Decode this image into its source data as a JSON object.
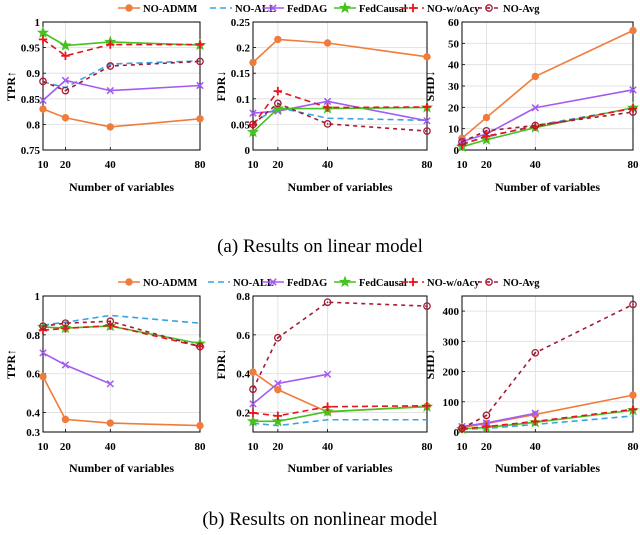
{
  "legends": [
    {
      "items": [
        {
          "name": "NO-ADMM",
          "color": "#f07c3c",
          "dash": "",
          "marker": "circle"
        },
        {
          "name": "NO-ALL",
          "color": "#3aa3e8",
          "dash": "6,4",
          "marker": "none"
        },
        {
          "name": "FedDAG",
          "color": "#a35bf2",
          "dash": "",
          "marker": "x"
        },
        {
          "name": "FedCausal",
          "color": "#45c21f",
          "dash": "",
          "marker": "star"
        },
        {
          "name": "NO-w/oAcy",
          "color": "#e8141e",
          "dash": "6,4",
          "marker": "plus"
        },
        {
          "name": "NO-Avg",
          "color": "#a31c34",
          "dash": "4,4",
          "marker": "circle-open"
        }
      ]
    },
    {
      "items": [
        {
          "name": "NO-ADMM",
          "color": "#f07c3c",
          "dash": "",
          "marker": "circle"
        },
        {
          "name": "NO-ALL",
          "color": "#3aa3e8",
          "dash": "6,4",
          "marker": "none"
        },
        {
          "name": "FedDAG",
          "color": "#a35bf2",
          "dash": "",
          "marker": "x"
        },
        {
          "name": "FedCausal",
          "color": "#45c21f",
          "dash": "",
          "marker": "star"
        },
        {
          "name": "NO-w/oAcy",
          "color": "#e8141e",
          "dash": "6,4",
          "marker": "plus"
        },
        {
          "name": "NO-Avg",
          "color": "#a31c34",
          "dash": "4,4",
          "marker": "circle-open"
        }
      ]
    }
  ],
  "captions": [
    "(a)  Results on linear model",
    "(b)  Results on nonlinear model"
  ],
  "chart_data": [
    {
      "type": "line",
      "row": 0,
      "col": 0,
      "ylabel": "TPR↑",
      "xlabel": "Number of variables",
      "x": [
        10,
        20,
        40,
        80
      ],
      "xticks": [
        10,
        20,
        40,
        80
      ],
      "xlim": [
        10,
        80
      ],
      "ylim": [
        0.75,
        1
      ],
      "yticks": [
        0.75,
        0.8,
        0.85,
        0.9,
        0.95,
        1
      ],
      "ytick_labels": [
        "0.75",
        "0.8",
        "0.85",
        "0.9",
        "0.95",
        "1"
      ],
      "series": [
        {
          "name": "NO-ADMM",
          "values": [
            0.83,
            0.813,
            0.795,
            0.811
          ]
        },
        {
          "name": "NO-ALL",
          "values": [
            0.883,
            0.872,
            0.918,
            0.924
          ]
        },
        {
          "name": "FedDAG",
          "values": [
            0.847,
            0.886,
            0.866,
            0.876
          ]
        },
        {
          "name": "FedCausal",
          "values": [
            0.979,
            0.954,
            0.961,
            0.955
          ]
        },
        {
          "name": "NO-w/oAcy",
          "values": [
            0.966,
            0.934,
            0.956,
            0.956
          ]
        },
        {
          "name": "NO-Avg",
          "values": [
            0.884,
            0.866,
            0.914,
            0.923
          ]
        }
      ]
    },
    {
      "type": "line",
      "row": 0,
      "col": 1,
      "ylabel": "FDR↓",
      "xlabel": "Number of variables",
      "x": [
        10,
        20,
        40,
        80
      ],
      "xticks": [
        10,
        20,
        40,
        80
      ],
      "xlim": [
        10,
        80
      ],
      "ylim": [
        0,
        0.25
      ],
      "yticks": [
        0,
        0.05,
        0.1,
        0.15,
        0.2,
        0.25
      ],
      "ytick_labels": [
        "0",
        "0.05",
        "0.1",
        "0.15",
        "0.2",
        "0.25"
      ],
      "series": [
        {
          "name": "NO-ADMM",
          "values": [
            0.171,
            0.216,
            0.209,
            0.182
          ]
        },
        {
          "name": "NO-ALL",
          "values": [
            0.053,
            0.083,
            0.062,
            0.058
          ]
        },
        {
          "name": "FedDAG",
          "values": [
            0.072,
            0.076,
            0.095,
            0.057
          ]
        },
        {
          "name": "FedCausal",
          "values": [
            0.035,
            0.081,
            0.081,
            0.083
          ]
        },
        {
          "name": "NO-w/oAcy",
          "values": [
            0.049,
            0.115,
            0.083,
            0.084
          ]
        },
        {
          "name": "NO-Avg",
          "values": [
            0.05,
            0.091,
            0.051,
            0.037
          ]
        }
      ]
    },
    {
      "type": "line",
      "row": 0,
      "col": 2,
      "ylabel": "SHD↓",
      "xlabel": "Number of variables",
      "x": [
        10,
        20,
        40,
        80
      ],
      "xticks": [
        10,
        20,
        40,
        80
      ],
      "xlim": [
        10,
        80
      ],
      "ylim": [
        0,
        60
      ],
      "yticks": [
        0,
        10,
        20,
        30,
        40,
        50,
        60
      ],
      "ytick_labels": [
        "0",
        "10",
        "20",
        "30",
        "40",
        "50",
        "60"
      ],
      "series": [
        {
          "name": "NO-ADMM",
          "values": [
            5.5,
            15.2,
            34.5,
            56.0
          ]
        },
        {
          "name": "NO-ALL",
          "values": [
            3.0,
            6.0,
            11.5,
            19.5
          ]
        },
        {
          "name": "FedDAG",
          "values": [
            4.0,
            7.5,
            19.8,
            28.2
          ]
        },
        {
          "name": "FedCausal",
          "values": [
            1.5,
            4.8,
            10.5,
            19.8
          ]
        },
        {
          "name": "NO-w/oAcy",
          "values": [
            2.5,
            6.5,
            11.0,
            19.5
          ]
        },
        {
          "name": "NO-Avg",
          "values": [
            3.8,
            9.0,
            11.5,
            17.8
          ]
        }
      ]
    },
    {
      "type": "line",
      "row": 1,
      "col": 0,
      "ylabel": "TPR↑",
      "xlabel": "Number of variables",
      "x": [
        10,
        20,
        40,
        80
      ],
      "xticks": [
        10,
        20,
        40,
        80
      ],
      "xlim": [
        10,
        80
      ],
      "ylim": [
        0.3,
        1
      ],
      "yticks": [
        0.3,
        0.4,
        0.6,
        0.8,
        1
      ],
      "ytick_labels": [
        "0.3",
        "0.4",
        "0.6",
        "0.8",
        "1"
      ],
      "series": [
        {
          "name": "NO-ADMM",
          "values": [
            0.585,
            0.365,
            0.346,
            0.333
          ]
        },
        {
          "name": "NO-ALL",
          "values": [
            0.85,
            0.865,
            0.9,
            0.86
          ]
        },
        {
          "name": "FedDAG",
          "values": [
            0.707,
            0.645,
            0.548,
            null
          ]
        },
        {
          "name": "FedCausal",
          "values": [
            0.84,
            0.835,
            0.845,
            0.755
          ]
        },
        {
          "name": "NO-w/oAcy",
          "values": [
            0.824,
            0.833,
            0.848,
            0.74
          ]
        },
        {
          "name": "NO-Avg",
          "values": [
            0.845,
            0.86,
            0.87,
            0.74
          ]
        }
      ]
    },
    {
      "type": "line",
      "row": 1,
      "col": 1,
      "ylabel": "FDR↓",
      "xlabel": "Number of variables",
      "x": [
        10,
        20,
        40,
        80
      ],
      "xticks": [
        10,
        20,
        40,
        80
      ],
      "xlim": [
        10,
        80
      ],
      "ylim": [
        0.1,
        0.8
      ],
      "yticks": [
        0.2,
        0.4,
        0.6,
        0.8
      ],
      "ytick_labels": [
        "0.2",
        "0.4",
        "0.6",
        "0.8"
      ],
      "series": [
        {
          "name": "NO-ADMM",
          "values": [
            0.408,
            0.318,
            0.203,
            0.233
          ]
        },
        {
          "name": "NO-ALL",
          "values": [
            0.145,
            0.133,
            0.163,
            0.163
          ]
        },
        {
          "name": "FedDAG",
          "values": [
            0.245,
            0.35,
            0.397,
            null
          ]
        },
        {
          "name": "FedCausal",
          "values": [
            0.155,
            0.155,
            0.205,
            0.23
          ]
        },
        {
          "name": "NO-w/oAcy",
          "values": [
            0.198,
            0.183,
            0.23,
            0.235
          ]
        },
        {
          "name": "NO-Avg",
          "values": [
            0.32,
            0.585,
            0.768,
            0.748
          ]
        }
      ]
    },
    {
      "type": "line",
      "row": 1,
      "col": 2,
      "ylabel": "SHD↓",
      "xlabel": "Number of variables",
      "x": [
        10,
        20,
        40,
        80
      ],
      "xticks": [
        10,
        20,
        40,
        80
      ],
      "xlim": [
        10,
        80
      ],
      "ylim": [
        0,
        450
      ],
      "yticks": [
        0,
        100,
        200,
        300,
        400
      ],
      "ytick_labels": [
        "0",
        "100",
        "200",
        "300",
        "400"
      ],
      "series": [
        {
          "name": "NO-ADMM",
          "values": [
            15,
            28,
            58,
            122
          ]
        },
        {
          "name": "NO-ALL",
          "values": [
            9,
            12,
            25,
            53
          ]
        },
        {
          "name": "FedDAG",
          "values": [
            18,
            30,
            62,
            null
          ]
        },
        {
          "name": "FedCausal",
          "values": [
            10,
            15,
            32,
            72
          ]
        },
        {
          "name": "NO-w/oAcy",
          "values": [
            10,
            18,
            35,
            75
          ]
        },
        {
          "name": "NO-Avg",
          "values": [
            12,
            55,
            262,
            422
          ]
        }
      ]
    }
  ]
}
